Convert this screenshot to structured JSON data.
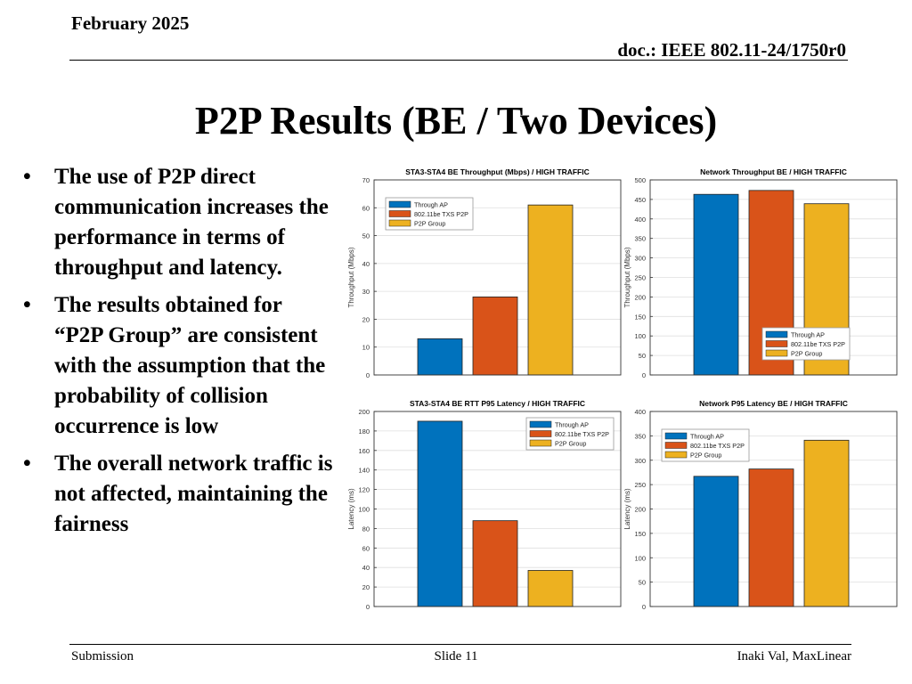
{
  "header": {
    "date": "February 2025",
    "doc": "doc.: IEEE 802.11-24/1750r0"
  },
  "title": "P2P Results (BE / Two Devices)",
  "bullets": [
    "The use of P2P direct communication increases the performance in terms of throughput and latency.",
    "The results obtained for “P2P Group” are consistent with the assumption that the probability of collision occurrence is low",
    "The overall network traffic is not affected, maintaining the fairness"
  ],
  "footer": {
    "left": "Submission",
    "center": "Slide 11",
    "right": "Inaki Val, MaxLinear"
  },
  "colors": {
    "series": [
      "#0072BD",
      "#D95319",
      "#EDB120"
    ]
  },
  "chart_data": [
    {
      "type": "bar",
      "title": "STA3-STA4 BE Throughput (Mbps) / HIGH TRAFFIC",
      "ylabel": "Throughput (Mbps)",
      "ylim": [
        0,
        70
      ],
      "yticks": [
        0,
        10,
        20,
        30,
        40,
        50,
        60,
        70
      ],
      "legend": {
        "position": "top-left",
        "entries": [
          "Through AP",
          "802.11be TXS P2P",
          "P2P Group"
        ]
      },
      "series": [
        {
          "name": "Through AP",
          "values": [
            13
          ]
        },
        {
          "name": "802.11be TXS P2P",
          "values": [
            28
          ]
        },
        {
          "name": "P2P Group",
          "values": [
            61
          ]
        }
      ],
      "grid": true
    },
    {
      "type": "bar",
      "title": "Network Throughput BE / HIGH TRAFFIC",
      "ylabel": "Throughput (Mbps)",
      "ylim": [
        0,
        500
      ],
      "yticks": [
        0,
        50,
        100,
        150,
        200,
        250,
        300,
        350,
        400,
        450,
        500
      ],
      "legend": {
        "position": "bottom-right",
        "entries": [
          "Through AP",
          "802.11be TXS P2P",
          "P2P Group"
        ]
      },
      "series": [
        {
          "name": "Through AP",
          "values": [
            463
          ]
        },
        {
          "name": "802.11be TXS P2P",
          "values": [
            473
          ]
        },
        {
          "name": "P2P Group",
          "values": [
            439
          ]
        }
      ],
      "grid": true
    },
    {
      "type": "bar",
      "title": "STA3-STA4 BE RTT P95 Latency / HIGH TRAFFIC",
      "ylabel": "Latency (ms)",
      "ylim": [
        0,
        200
      ],
      "yticks": [
        0,
        20,
        40,
        60,
        80,
        100,
        120,
        140,
        160,
        180,
        200
      ],
      "legend": {
        "position": "top-right",
        "entries": [
          "Through AP",
          "802.11be TXS P2P",
          "P2P Group"
        ]
      },
      "series": [
        {
          "name": "Through AP",
          "values": [
            190
          ]
        },
        {
          "name": "802.11be TXS P2P",
          "values": [
            88
          ]
        },
        {
          "name": "P2P Group",
          "values": [
            37
          ]
        }
      ],
      "grid": true
    },
    {
      "type": "bar",
      "title": "Network P95 Latency BE / HIGH TRAFFIC",
      "ylabel": "Latency (ms)",
      "ylim": [
        0,
        400
      ],
      "yticks": [
        0,
        50,
        100,
        150,
        200,
        250,
        300,
        350,
        400
      ],
      "legend": {
        "position": "top-left",
        "entries": [
          "Through AP",
          "802.11be TXS P2P",
          "P2P Group"
        ]
      },
      "series": [
        {
          "name": "Through AP",
          "values": [
            267
          ]
        },
        {
          "name": "802.11be TXS P2P",
          "values": [
            282
          ]
        },
        {
          "name": "P2P Group",
          "values": [
            341
          ]
        }
      ],
      "grid": true
    }
  ]
}
